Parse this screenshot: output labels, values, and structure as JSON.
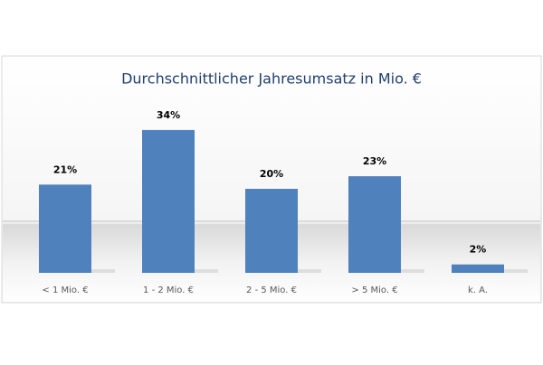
{
  "chart_data": {
    "type": "bar",
    "title": "Durchschnittlicher Jahresumsatz in Mio. €",
    "categories": [
      "< 1 Mio. €",
      "1 - 2 Mio. €",
      "2 - 5 Mio. €",
      "> 5 Mio. €",
      "k. A."
    ],
    "values": [
      21,
      34,
      20,
      23,
      2
    ],
    "value_labels": [
      "21%",
      "34%",
      "20%",
      "23%",
      "2%"
    ],
    "color": "#4f81bd"
  }
}
